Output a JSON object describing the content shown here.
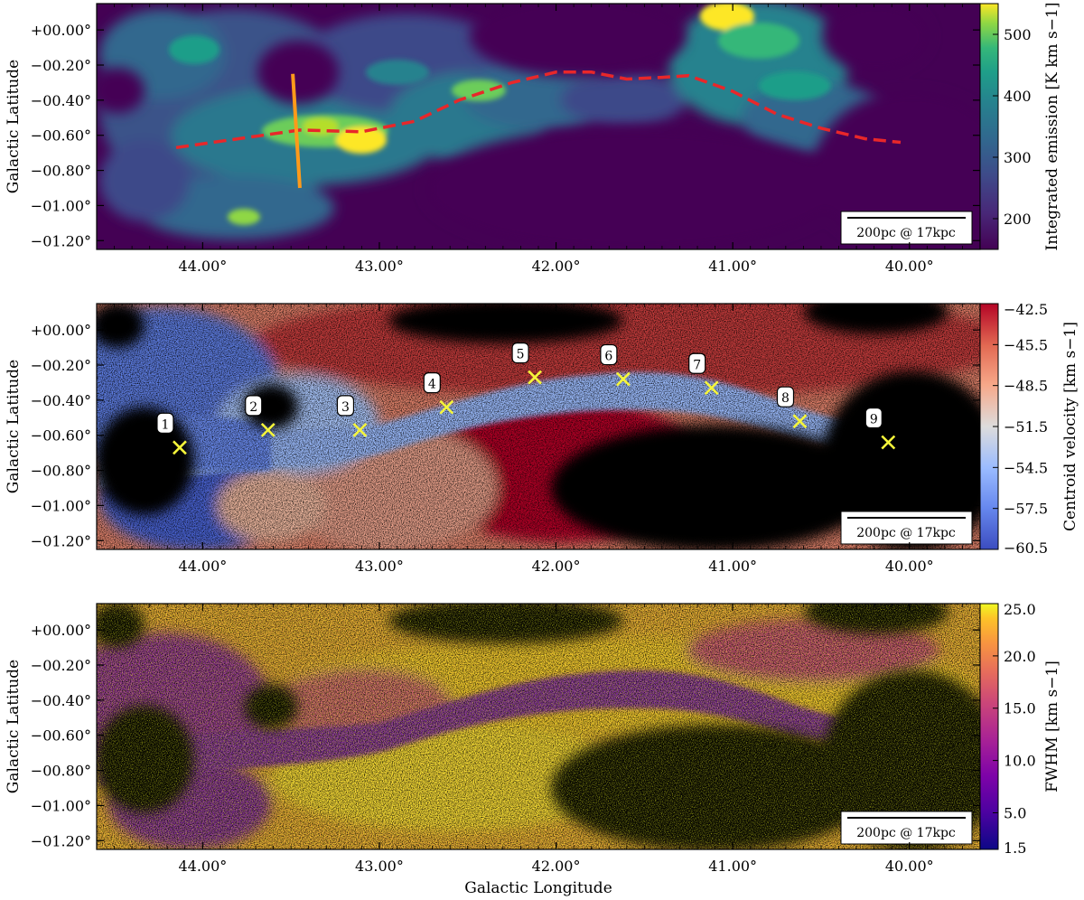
{
  "chart_data": [
    {
      "type": "heatmap",
      "panel": "top",
      "colormap": "viridis",
      "xlim": [
        44.6,
        39.6
      ],
      "ylim": [
        -1.25,
        0.15
      ],
      "x_ticks": [
        44.0,
        43.0,
        42.0,
        41.0,
        40.0
      ],
      "x_tick_labels": [
        "44.00°",
        "43.00°",
        "42.00°",
        "41.00°",
        "40.00°"
      ],
      "y_ticks": [
        0.0,
        -0.2,
        -0.4,
        -0.6,
        -0.8,
        -1.0,
        -1.2
      ],
      "y_tick_labels": [
        "+00.00°",
        "−00.20°",
        "−00.40°",
        "−00.60°",
        "−00.80°",
        "−01.00°",
        "−01.20°"
      ],
      "ylabel": "Galactic Latitude",
      "colorbar_label": "Integrated emission [K km s−1]",
      "colorbar_range": [
        150,
        550
      ],
      "colorbar_ticks": [
        "200",
        "300",
        "400",
        "500"
      ],
      "spine_path": {
        "color": "#e8272a",
        "style": "dashed",
        "points": [
          [
            44.15,
            -0.67
          ],
          [
            43.8,
            -0.62
          ],
          [
            43.45,
            -0.57
          ],
          [
            43.1,
            -0.58
          ],
          [
            42.8,
            -0.52
          ],
          [
            42.55,
            -0.4
          ],
          [
            42.25,
            -0.3
          ],
          [
            42.0,
            -0.24
          ],
          [
            41.8,
            -0.24
          ],
          [
            41.6,
            -0.28
          ],
          [
            41.4,
            -0.27
          ],
          [
            41.25,
            -0.26
          ],
          [
            41.0,
            -0.35
          ],
          [
            40.75,
            -0.48
          ],
          [
            40.5,
            -0.56
          ],
          [
            40.25,
            -0.62
          ],
          [
            40.05,
            -0.64
          ]
        ]
      },
      "cut_line": {
        "color": "#ff9a1a",
        "points": [
          [
            43.49,
            -0.25
          ],
          [
            43.45,
            -0.9
          ]
        ]
      },
      "scalebar_label": "200pc @ 17kpc"
    },
    {
      "type": "heatmap",
      "panel": "middle",
      "colormap": "coolwarm",
      "xlim": [
        44.6,
        39.6
      ],
      "ylim": [
        -1.25,
        0.15
      ],
      "x_ticks": [
        44.0,
        43.0,
        42.0,
        41.0,
        40.0
      ],
      "x_tick_labels": [
        "44.00°",
        "43.00°",
        "42.00°",
        "41.00°",
        "40.00°"
      ],
      "y_ticks": [
        0.0,
        -0.2,
        -0.4,
        -0.6,
        -0.8,
        -1.0,
        -1.2
      ],
      "y_tick_labels": [
        "+00.00°",
        "−00.20°",
        "−00.40°",
        "−00.60°",
        "−00.80°",
        "−01.00°",
        "−01.20°"
      ],
      "ylabel": "Galactic Latitude",
      "colorbar_label": "Centroid velocity [km s−1]",
      "colorbar_range": [
        -60.5,
        -42.5
      ],
      "colorbar_ticks": [
        "−42.5",
        "−45.5",
        "−48.5",
        "−51.5",
        "−54.5",
        "−57.5",
        "−60.5"
      ],
      "markers": [
        {
          "label": "1",
          "l": 44.13,
          "b": -0.67
        },
        {
          "label": "2",
          "l": 43.63,
          "b": -0.57
        },
        {
          "label": "3",
          "l": 43.11,
          "b": -0.57
        },
        {
          "label": "4",
          "l": 42.62,
          "b": -0.44
        },
        {
          "label": "5",
          "l": 42.12,
          "b": -0.27
        },
        {
          "label": "6",
          "l": 41.62,
          "b": -0.28
        },
        {
          "label": "7",
          "l": 41.12,
          "b": -0.33
        },
        {
          "label": "8",
          "l": 40.62,
          "b": -0.52
        },
        {
          "label": "9",
          "l": 40.12,
          "b": -0.64
        }
      ],
      "scalebar_label": "200pc @ 17kpc"
    },
    {
      "type": "heatmap",
      "panel": "bottom",
      "colormap": "plasma",
      "xlim": [
        44.6,
        39.6
      ],
      "ylim": [
        -1.25,
        0.15
      ],
      "x_ticks": [
        44.0,
        43.0,
        42.0,
        41.0,
        40.0
      ],
      "x_tick_labels": [
        "44.00°",
        "43.00°",
        "42.00°",
        "41.00°",
        "40.00°"
      ],
      "y_ticks": [
        0.0,
        -0.2,
        -0.4,
        -0.6,
        -0.8,
        -1.0,
        -1.2
      ],
      "y_tick_labels": [
        "+00.00°",
        "−00.20°",
        "−00.40°",
        "−00.60°",
        "−00.80°",
        "−01.00°",
        "−01.20°"
      ],
      "xlabel": "Galactic Longitude",
      "ylabel": "Galactic Latitude",
      "colorbar_label": "FWHM [km s−1]",
      "colorbar_range": [
        1.5,
        25.0
      ],
      "colorbar_ticks": [
        "25.0",
        "20.0",
        "15.0",
        "10.0",
        "5.0",
        "1.5"
      ],
      "scalebar_label": "200pc @ 17kpc"
    }
  ]
}
